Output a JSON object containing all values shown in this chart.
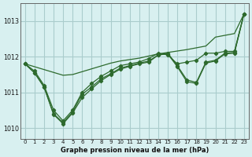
{
  "x": [
    0,
    1,
    2,
    3,
    4,
    5,
    6,
    7,
    8,
    9,
    10,
    11,
    12,
    13,
    14,
    15,
    16,
    17,
    18,
    19,
    20,
    21,
    22,
    23
  ],
  "line_smooth": [
    1011.8,
    1011.72,
    1011.64,
    1011.56,
    1011.48,
    1011.5,
    1011.58,
    1011.66,
    1011.74,
    1011.82,
    1011.88,
    1011.92,
    1011.96,
    1012.02,
    1012.08,
    1012.12,
    1012.16,
    1012.2,
    1012.25,
    1012.3,
    1012.55,
    1012.6,
    1012.65,
    1013.2
  ],
  "line_max": [
    1011.8,
    1011.6,
    1011.2,
    1010.5,
    1010.2,
    1010.5,
    1011.0,
    1011.25,
    1011.45,
    1011.6,
    1011.75,
    1011.8,
    1011.85,
    1011.95,
    1012.1,
    1012.05,
    1011.8,
    1011.85,
    1011.9,
    1012.1,
    1012.1,
    1012.15,
    1012.15,
    1013.2
  ],
  "line_mean": [
    1011.8,
    1011.55,
    1011.15,
    1010.4,
    1010.15,
    1010.45,
    1010.95,
    1011.15,
    1011.38,
    1011.52,
    1011.68,
    1011.75,
    1011.82,
    1011.88,
    1012.05,
    1012.1,
    1011.75,
    1011.35,
    1011.28,
    1011.85,
    1011.9,
    1012.1,
    1012.12,
    1013.2
  ],
  "line_min": [
    1011.8,
    1011.55,
    1011.15,
    1010.38,
    1010.12,
    1010.42,
    1010.85,
    1011.1,
    1011.33,
    1011.5,
    1011.65,
    1011.73,
    1011.8,
    1011.85,
    1012.05,
    1012.08,
    1011.72,
    1011.3,
    1011.25,
    1011.82,
    1011.88,
    1012.08,
    1012.1,
    1013.2
  ],
  "bg_color": "#d8f0f0",
  "grid_color": "#aacccc",
  "line_color": "#2d6a2d",
  "xlabel": "Graphe pression niveau de la mer (hPa)",
  "ylim": [
    1009.7,
    1013.5
  ],
  "xlim": [
    -0.5,
    23.5
  ],
  "yticks": [
    1010,
    1011,
    1012,
    1013
  ],
  "xticks": [
    0,
    1,
    2,
    3,
    4,
    5,
    6,
    7,
    8,
    9,
    10,
    11,
    12,
    13,
    14,
    15,
    16,
    17,
    18,
    19,
    20,
    21,
    22,
    23
  ]
}
